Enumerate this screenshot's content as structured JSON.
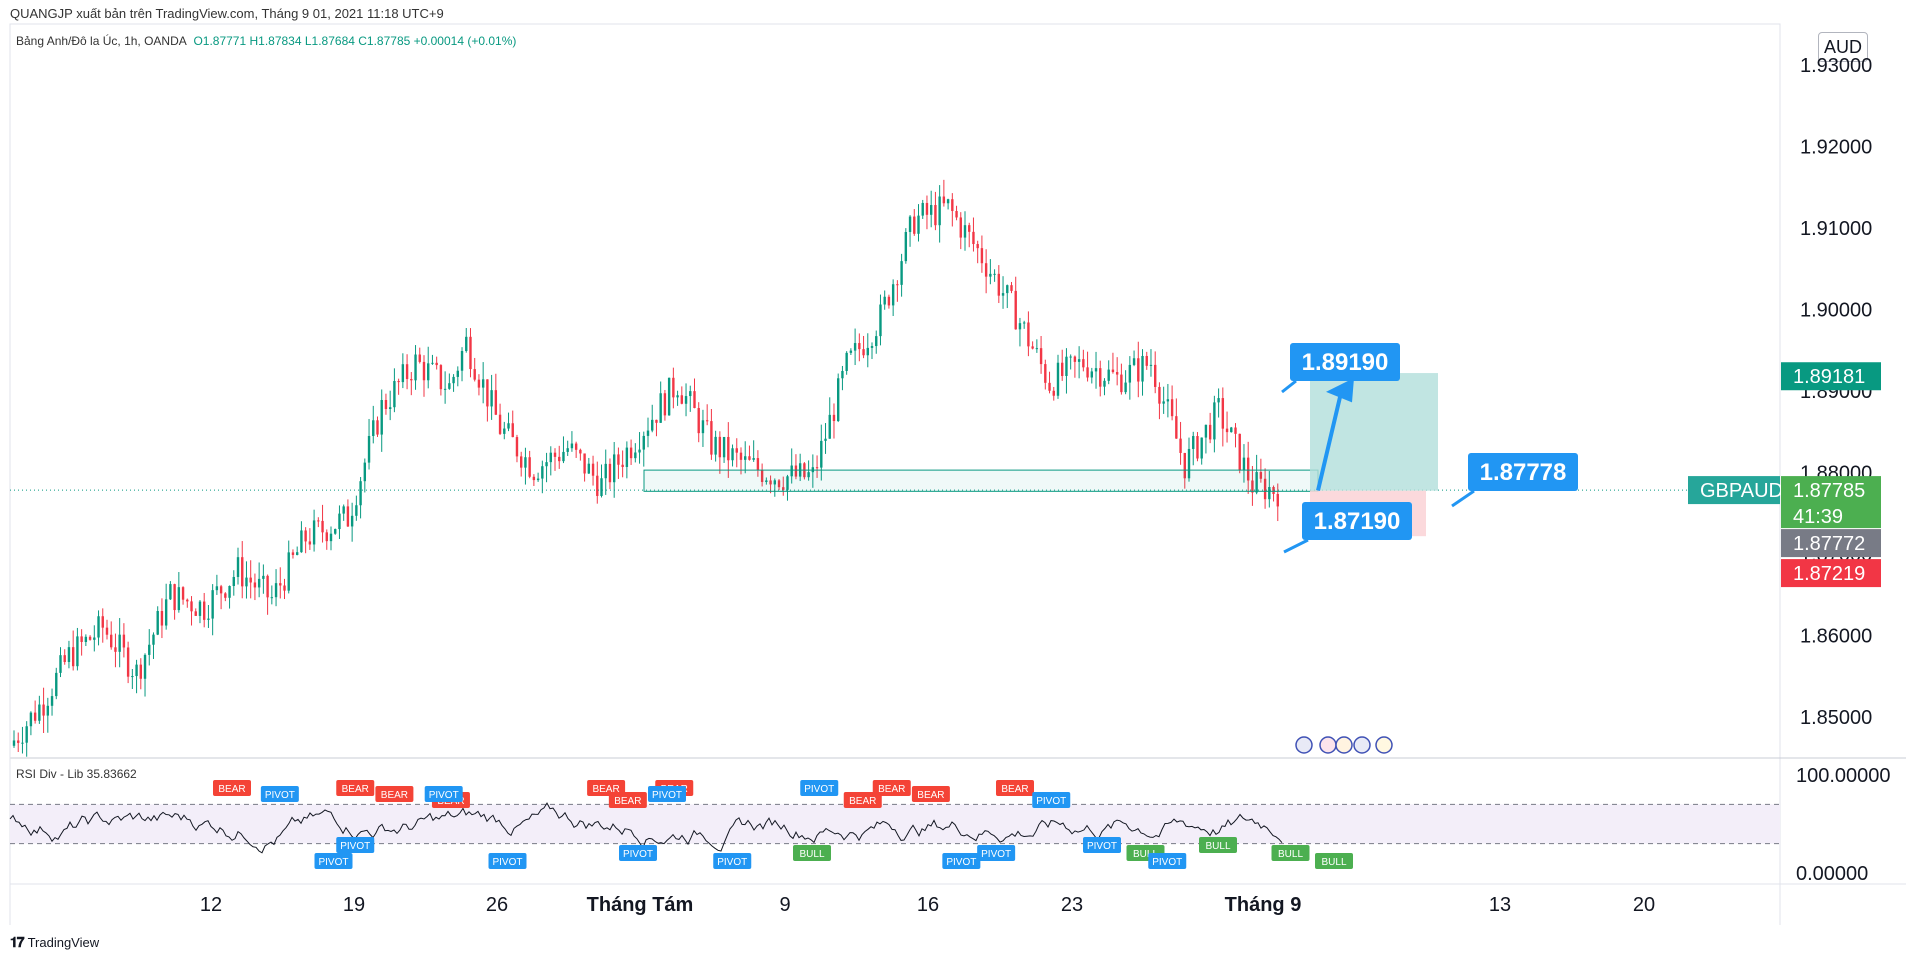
{
  "header": {
    "publisher_line": "QUANGJP xuất bản trên TradingView.com, Tháng 9 01, 2021 11:18 UTC+9",
    "symbol_line": "Bảng Anh/Đô la Úc, 1h, OANDA",
    "ohlc": "O1.87771  H1.87834  L1.87684  C1.87785  +0.00014 (+0.01%)"
  },
  "currency_button": "AUD",
  "footer_brand": "TradingView",
  "colors": {
    "up": "#089981",
    "down": "#f23645",
    "target_zone": "#b2dfdb",
    "stop_zone": "#fbd5d8",
    "callout_blue": "#2196f3",
    "bear_tag": "#f44336",
    "pivot_tag": "#2196f3",
    "bull_tag": "#4caf50"
  },
  "price_axis": {
    "ticks": [
      "1.93000",
      "1.92000",
      "1.91000",
      "1.90000",
      "1.89000",
      "1.88000",
      "1.87000",
      "1.86000",
      "1.85000"
    ],
    "badges": {
      "target": "1.89181",
      "symbol": "GBPAUD",
      "last": "1.87785",
      "countdown": "41:39",
      "bid": "1.87772",
      "stop": "1.87219"
    }
  },
  "callouts": {
    "target": "1.89190",
    "entry": "1.87778",
    "stop": "1.87190"
  },
  "rsi": {
    "title": "RSI Div - Lib  35.83662",
    "ticks": [
      "100.00000",
      "0.00000"
    ],
    "tag_labels": {
      "bear": "BEAR",
      "pivot": "PIVOT",
      "bull": "BULL"
    }
  },
  "time_axis": {
    "labels": [
      "12",
      "19",
      "26",
      "Tháng Tám",
      "9",
      "16",
      "23",
      "Tháng 9",
      "13",
      "20"
    ]
  },
  "chart_data": {
    "type": "candlestick",
    "symbol": "GBPAUD",
    "timeframe": "1h",
    "ylim": [
      1.845,
      1.935
    ],
    "trade": {
      "target": 1.8919,
      "entry": 1.87778,
      "stop": 1.8719
    },
    "support_zone": [
      1.8777,
      1.8803
    ],
    "swings": [
      [
        0,
        1.8465
      ],
      [
        8,
        1.852
      ],
      [
        14,
        1.8575
      ],
      [
        22,
        1.861
      ],
      [
        30,
        1.8555
      ],
      [
        38,
        1.865
      ],
      [
        46,
        1.8635
      ],
      [
        54,
        1.868
      ],
      [
        62,
        1.8645
      ],
      [
        70,
        1.872
      ],
      [
        80,
        1.8745
      ],
      [
        88,
        1.888
      ],
      [
        96,
        1.8935
      ],
      [
        104,
        1.8905
      ],
      [
        108,
        1.896
      ],
      [
        116,
        1.8855
      ],
      [
        124,
        1.8805
      ],
      [
        132,
        1.883
      ],
      [
        140,
        1.8785
      ],
      [
        150,
        1.8855
      ],
      [
        158,
        1.891
      ],
      [
        166,
        1.8835
      ],
      [
        174,
        1.881
      ],
      [
        182,
        1.8795
      ],
      [
        190,
        1.8795
      ],
      [
        198,
        1.893
      ],
      [
        206,
        1.899
      ],
      [
        214,
        1.911
      ],
      [
        222,
        1.9125
      ],
      [
        230,
        1.9065
      ],
      [
        238,
        1.8995
      ],
      [
        246,
        1.891
      ],
      [
        254,
        1.8935
      ],
      [
        262,
        1.8915
      ],
      [
        270,
        1.8935
      ],
      [
        278,
        1.881
      ],
      [
        286,
        1.8875
      ],
      [
        294,
        1.8785
      ],
      [
        300,
        1.8778
      ]
    ],
    "rsi_ylim": [
      0,
      100
    ],
    "rsi_bands": [
      30,
      70
    ],
    "rsi_tags": [
      {
        "kind": "bear",
        "pos": 0.14
      },
      {
        "kind": "pivot",
        "pos": 0.173
      },
      {
        "kind": "pivot",
        "pos": 0.21
      },
      {
        "kind": "bear",
        "pos": 0.225
      },
      {
        "kind": "bear",
        "pos": 0.252
      },
      {
        "kind": "bear",
        "pos": 0.291
      },
      {
        "kind": "pivot",
        "pos": 0.225
      },
      {
        "kind": "pivot",
        "pos": 0.286
      },
      {
        "kind": "pivot",
        "pos": 0.33
      },
      {
        "kind": "bear",
        "pos": 0.398
      },
      {
        "kind": "pivot",
        "pos": 0.42
      },
      {
        "kind": "bear",
        "pos": 0.413
      },
      {
        "kind": "bear",
        "pos": 0.445
      },
      {
        "kind": "pivot",
        "pos": 0.44
      },
      {
        "kind": "pivot",
        "pos": 0.485
      },
      {
        "kind": "pivot",
        "pos": 0.545
      },
      {
        "kind": "bull",
        "pos": 0.54
      },
      {
        "kind": "bear",
        "pos": 0.575
      },
      {
        "kind": "bear",
        "pos": 0.595
      },
      {
        "kind": "bear",
        "pos": 0.622
      },
      {
        "kind": "pivot",
        "pos": 0.643
      },
      {
        "kind": "bear",
        "pos": 0.68
      },
      {
        "kind": "pivot",
        "pos": 0.667
      },
      {
        "kind": "pivot",
        "pos": 0.705
      },
      {
        "kind": "pivot",
        "pos": 0.74
      },
      {
        "kind": "bull",
        "pos": 0.77
      },
      {
        "kind": "pivot",
        "pos": 0.785
      },
      {
        "kind": "bull",
        "pos": 0.82
      },
      {
        "kind": "bull",
        "pos": 0.87
      },
      {
        "kind": "bull",
        "pos": 0.9
      }
    ]
  }
}
